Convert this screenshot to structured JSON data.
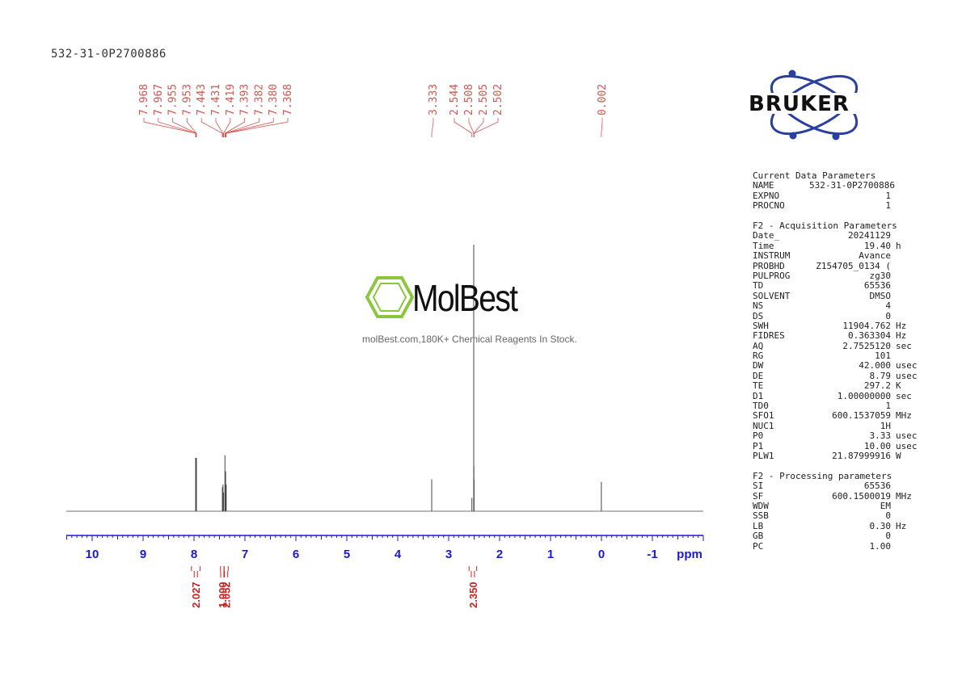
{
  "sample_id": "532-31-0P2700886",
  "watermark": {
    "name": "MolBest",
    "tagline": "molBest.com,180K+ Chemical Reagents In Stock."
  },
  "logo": {
    "text": "BRUKER"
  },
  "colors": {
    "peak_label": "#d9534f",
    "axis": "#1a1ad6",
    "integral": "#cc2222",
    "spectrum": "#444444",
    "molbest_green": "#8cc63f",
    "bruker_blue": "#2a3f9e"
  },
  "chart_data": {
    "type": "line",
    "xlabel": "ppm",
    "xlim": [
      10.5,
      -2.0
    ],
    "x_reversed": true,
    "x_ticks": [
      "10",
      "9",
      "8",
      "7",
      "6",
      "5",
      "4",
      "3",
      "2",
      "1",
      "0",
      "-1"
    ],
    "peaks": [
      {
        "ppm": 7.968,
        "height": 0.2
      },
      {
        "ppm": 7.967,
        "height": 0.2
      },
      {
        "ppm": 7.955,
        "height": 0.2
      },
      {
        "ppm": 7.953,
        "height": 0.2
      },
      {
        "ppm": 7.443,
        "height": 0.09
      },
      {
        "ppm": 7.431,
        "height": 0.1
      },
      {
        "ppm": 7.419,
        "height": 0.07
      },
      {
        "ppm": 7.393,
        "height": 0.21
      },
      {
        "ppm": 7.382,
        "height": 0.15
      },
      {
        "ppm": 7.38,
        "height": 0.15
      },
      {
        "ppm": 7.368,
        "height": 0.1
      },
      {
        "ppm": 3.333,
        "height": 0.12
      },
      {
        "ppm": 2.544,
        "height": 0.05
      },
      {
        "ppm": 2.508,
        "height": 1.0
      },
      {
        "ppm": 2.505,
        "height": 0.17
      },
      {
        "ppm": 2.502,
        "height": 0.12
      },
      {
        "ppm": 0.002,
        "height": 0.11
      }
    ],
    "peak_labels": [
      {
        "text": "7.968",
        "ppm": 7.968
      },
      {
        "text": "7.967",
        "ppm": 7.967
      },
      {
        "text": "7.955",
        "ppm": 7.955
      },
      {
        "text": "7.953",
        "ppm": 7.953
      },
      {
        "text": "7.443",
        "ppm": 7.443
      },
      {
        "text": "7.431",
        "ppm": 7.431
      },
      {
        "text": "7.419",
        "ppm": 7.419
      },
      {
        "text": "7.393",
        "ppm": 7.393
      },
      {
        "text": "7.382",
        "ppm": 7.382
      },
      {
        "text": "7.380",
        "ppm": 7.38
      },
      {
        "text": "7.368",
        "ppm": 7.368
      },
      {
        "text": "3.333",
        "ppm": 3.333
      },
      {
        "text": "2.544",
        "ppm": 2.544
      },
      {
        "text": "2.508",
        "ppm": 2.508
      },
      {
        "text": "2.505",
        "ppm": 2.505
      },
      {
        "text": "2.502",
        "ppm": 2.502
      },
      {
        "text": "0.002",
        "ppm": 0.002
      }
    ],
    "integrals": [
      {
        "value": "2.027",
        "from": 8.05,
        "to": 7.88
      },
      {
        "value": "1.000",
        "from": 7.48,
        "to": 7.41
      },
      {
        "value": "2.052",
        "from": 7.41,
        "to": 7.33
      },
      {
        "value": "2.350",
        "from": 2.6,
        "to": 2.45
      }
    ]
  },
  "parameters": {
    "current": {
      "title": "Current Data Parameters",
      "rows": [
        {
          "k": "NAME",
          "v": "532-31-0P2700886",
          "u": ""
        },
        {
          "k": "EXPNO",
          "v": "1",
          "u": ""
        },
        {
          "k": "PROCNO",
          "v": "1",
          "u": ""
        }
      ]
    },
    "acquisition": {
      "title": "F2 - Acquisition Parameters",
      "rows": [
        {
          "k": "Date_",
          "v": "20241129",
          "u": ""
        },
        {
          "k": "Time",
          "v": "19.40",
          "u": "h"
        },
        {
          "k": "INSTRUM",
          "v": "Avance",
          "u": ""
        },
        {
          "k": "PROBHD",
          "v": "Z154705_0134 (",
          "u": ""
        },
        {
          "k": "PULPROG",
          "v": "zg30",
          "u": ""
        },
        {
          "k": "TD",
          "v": "65536",
          "u": ""
        },
        {
          "k": "SOLVENT",
          "v": "DMSO",
          "u": ""
        },
        {
          "k": "NS",
          "v": "4",
          "u": ""
        },
        {
          "k": "DS",
          "v": "0",
          "u": ""
        },
        {
          "k": "SWH",
          "v": "11904.762",
          "u": "Hz"
        },
        {
          "k": "FIDRES",
          "v": "0.363304",
          "u": "Hz"
        },
        {
          "k": "AQ",
          "v": "2.7525120",
          "u": "sec"
        },
        {
          "k": "RG",
          "v": "101",
          "u": ""
        },
        {
          "k": "DW",
          "v": "42.000",
          "u": "usec"
        },
        {
          "k": "DE",
          "v": "8.79",
          "u": "usec"
        },
        {
          "k": "TE",
          "v": "297.2",
          "u": "K"
        },
        {
          "k": "D1",
          "v": "1.00000000",
          "u": "sec"
        },
        {
          "k": "TD0",
          "v": "1",
          "u": ""
        },
        {
          "k": "SFO1",
          "v": "600.1537059",
          "u": "MHz"
        },
        {
          "k": "NUC1",
          "v": "1H",
          "u": ""
        },
        {
          "k": "P0",
          "v": "3.33",
          "u": "usec"
        },
        {
          "k": "P1",
          "v": "10.00",
          "u": "usec"
        },
        {
          "k": "PLW1",
          "v": "21.87999916",
          "u": "W"
        }
      ]
    },
    "processing": {
      "title": "F2 - Processing parameters",
      "rows": [
        {
          "k": "SI",
          "v": "65536",
          "u": ""
        },
        {
          "k": "SF",
          "v": "600.1500019",
          "u": "MHz"
        },
        {
          "k": "WDW",
          "v": "EM",
          "u": ""
        },
        {
          "k": "SSB",
          "v": "0",
          "u": ""
        },
        {
          "k": "LB",
          "v": "0.30",
          "u": "Hz"
        },
        {
          "k": "GB",
          "v": "0",
          "u": ""
        },
        {
          "k": "PC",
          "v": "1.00",
          "u": ""
        }
      ]
    }
  }
}
